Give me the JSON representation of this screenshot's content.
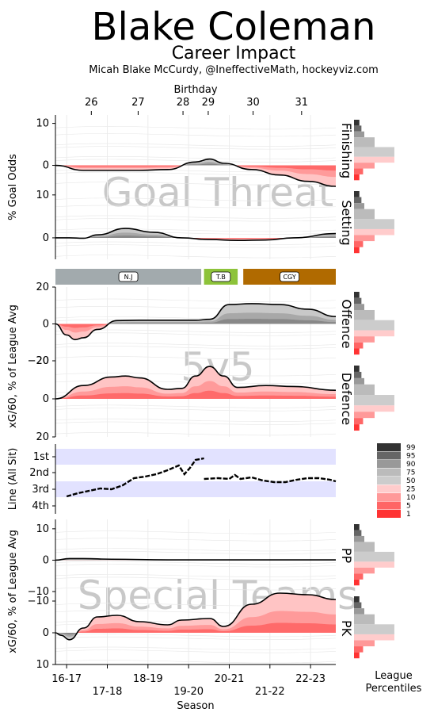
{
  "header": {
    "title": "Blake Coleman",
    "subtitle": "Career Impact",
    "credit": "Micah Blake McCurdy, @IneffectiveMath, hockeyviz.com"
  },
  "birthday_axis": {
    "label": "Birthday",
    "ticks": [
      "26",
      "27",
      "28",
      "29",
      "30",
      "31"
    ]
  },
  "season_axis": {
    "label": "Season",
    "ticks_upper": [
      "16-17",
      "18-19",
      "20-21",
      "22-23"
    ],
    "ticks_lower": [
      "17-18",
      "19-20",
      "21-22"
    ]
  },
  "chart_data": [
    {
      "type": "area",
      "name": "Finishing",
      "group": "Goal Threat",
      "ylabel": "% Goal Odds",
      "yticks": [
        "10",
        "0"
      ],
      "ylim": [
        -5,
        12
      ],
      "x": [
        0,
        0.1,
        0.2,
        0.3,
        0.4,
        0.5,
        0.55,
        0.6,
        0.7,
        0.8,
        0.9,
        1.0
      ],
      "values": [
        0,
        -1.2,
        -1.2,
        -1.2,
        -1.0,
        0.8,
        1.5,
        0.5,
        -1.0,
        -2.3,
        -3.8,
        -5.0
      ]
    },
    {
      "type": "area",
      "name": "Setting",
      "group": "Goal Threat",
      "ylabel": "",
      "yticks": [
        "10",
        "0"
      ],
      "ylim": [
        -5,
        12
      ],
      "x": [
        0,
        0.05,
        0.1,
        0.15,
        0.25,
        0.35,
        0.45,
        0.55,
        0.65,
        0.75,
        0.85,
        1.0
      ],
      "values": [
        0,
        0,
        -0.1,
        0.7,
        2.2,
        1.3,
        0.0,
        -0.4,
        -0.6,
        -0.5,
        0.0,
        1.0
      ]
    },
    {
      "type": "area",
      "name": "Offence",
      "group": "5v5",
      "ylabel": "xG/60, % of League Avg",
      "yticks": [
        "20",
        "0",
        "−20"
      ],
      "ylim": [
        -20,
        20
      ],
      "x": [
        0,
        0.04,
        0.07,
        0.1,
        0.15,
        0.22,
        0.3,
        0.4,
        0.5,
        0.55,
        0.62,
        0.7,
        0.8,
        0.9,
        1.0
      ],
      "values": [
        0,
        -6,
        -8.5,
        -7.5,
        -3,
        1.8,
        2.0,
        2.0,
        2.0,
        2.5,
        10.5,
        11.0,
        10.5,
        8.0,
        4.0
      ]
    },
    {
      "type": "area",
      "name": "Defence",
      "group": "5v5",
      "ylabel": "",
      "yticks": [
        "−20",
        "0",
        "20"
      ],
      "ylim": [
        -20,
        20
      ],
      "x": [
        0,
        0.1,
        0.2,
        0.25,
        0.3,
        0.4,
        0.45,
        0.5,
        0.55,
        0.6,
        0.65,
        0.75,
        0.85,
        1.0
      ],
      "values": [
        0,
        -7,
        -11.5,
        -12,
        -11,
        -5,
        -5.5,
        -12,
        -17,
        -12,
        -6,
        -7,
        -6.5,
        -4.5
      ]
    },
    {
      "type": "area",
      "name": "PP",
      "group": "Special Teams",
      "ylabel": "xG/60, % of League Avg",
      "yticks": [
        "10",
        "0",
        "−10"
      ],
      "ylim": [
        -10,
        13
      ],
      "x": [
        0,
        0.05,
        0.1,
        0.2,
        0.4,
        0.6,
        0.8,
        1.0
      ],
      "values": [
        0,
        0.5,
        0.5,
        0.3,
        0.1,
        0.1,
        0.1,
        0.1
      ]
    },
    {
      "type": "area",
      "name": "PK",
      "group": "Special Teams",
      "ylabel": "",
      "yticks": [
        "−10",
        "0",
        "10"
      ],
      "ylim": [
        -13,
        10
      ],
      "x": [
        0,
        0.02,
        0.05,
        0.1,
        0.15,
        0.22,
        0.3,
        0.4,
        0.45,
        0.55,
        0.6,
        0.7,
        0.8,
        0.9,
        1.0
      ],
      "values": [
        0,
        0.8,
        2.2,
        -1.5,
        -5,
        -5.5,
        -3.5,
        -2.5,
        -4,
        -4.5,
        -2,
        -9,
        -12.5,
        -12,
        -10.5
      ]
    }
  ],
  "line_panel": {
    "ylabel": "Line (All Sit)",
    "yticks": [
      "1st",
      "2nd",
      "3rd",
      "4th"
    ]
  },
  "teams": [
    {
      "name": "N.J",
      "color": "#a2aaad",
      "start": 0.0,
      "end": 0.52
    },
    {
      "name": "T.B",
      "color": "#8dc33a",
      "start": 0.53,
      "end": 0.65
    },
    {
      "name": "CGY",
      "color": "#b06a00",
      "start": 0.67,
      "end": 1.0
    }
  ],
  "legend": {
    "title": "League\nPercentiles",
    "title_line1": "League",
    "title_line2": "Percentiles",
    "entries": [
      "99",
      "95",
      "90",
      "75",
      "50",
      "25",
      "10",
      "5",
      "1"
    ],
    "colors": [
      "#333333",
      "#666666",
      "#999999",
      "#bbbbbb",
      "#cccccc",
      "#ffcccc",
      "#ff9999",
      "#ff6666",
      "#ff3333"
    ]
  },
  "watermarks": {
    "goal_threat": "Goal Threat",
    "five_v_five": "5v5",
    "special_teams": "Special Teams"
  }
}
